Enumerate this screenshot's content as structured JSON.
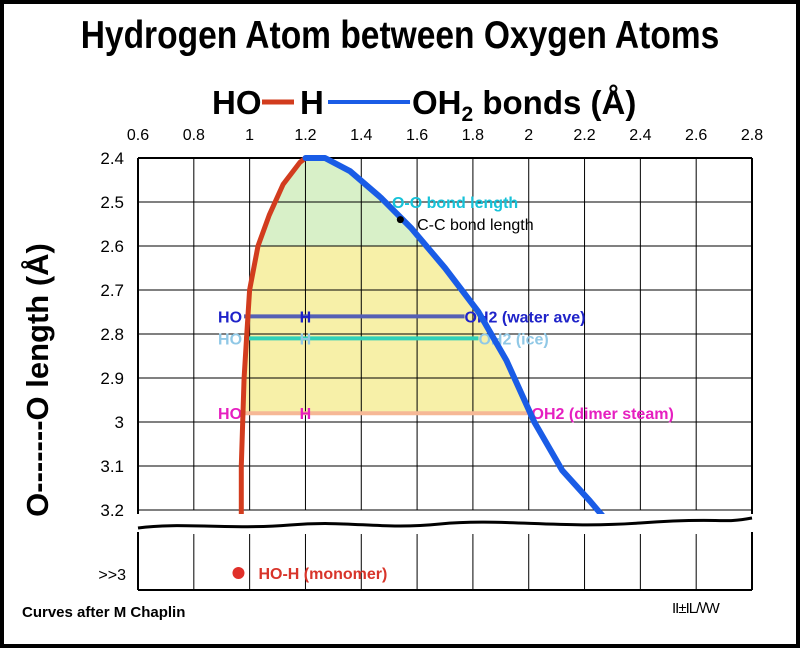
{
  "chart_data": {
    "type": "line",
    "title": "Hydrogen Atom between Oxygen Atoms",
    "subtitle_parts": {
      "left": "HO",
      "mid": "H",
      "right_main": "OH",
      "right_sub": "2",
      "right_tail": " bonds (Å)"
    },
    "ylabel": "O-------O  length (Å)",
    "xlim": [
      0.6,
      2.8
    ],
    "ylim": [
      2.4,
      3.2
    ],
    "x_ticks": [
      "0.6",
      "0.8",
      "1",
      "1.2",
      "1.4",
      "1.6",
      "1.8",
      "2",
      "2.2",
      "2.4",
      "2.6",
      "2.8"
    ],
    "y_ticks": [
      "2.4",
      "2.5",
      "2.6",
      "2.7",
      "2.8",
      "2.9",
      "3",
      "3.1",
      "3.2"
    ],
    "y_extra_tick": ">>3",
    "series": [
      {
        "key": "HO-H",
        "color": "#d23c1e",
        "points": [
          [
            0.97,
            3.22
          ],
          [
            0.97,
            3.1
          ],
          [
            0.975,
            3.0
          ],
          [
            0.98,
            2.9
          ],
          [
            0.99,
            2.8
          ],
          [
            1.0,
            2.7
          ],
          [
            1.03,
            2.6
          ],
          [
            1.07,
            2.53
          ],
          [
            1.12,
            2.46
          ],
          [
            1.18,
            2.41
          ],
          [
            1.2,
            2.4
          ]
        ]
      },
      {
        "key": "H—OH2",
        "color": "#1a5ce6",
        "points": [
          [
            1.2,
            2.4
          ],
          [
            1.27,
            2.4
          ],
          [
            1.36,
            2.43
          ],
          [
            1.47,
            2.49
          ],
          [
            1.58,
            2.56
          ],
          [
            1.7,
            2.65
          ],
          [
            1.82,
            2.75
          ],
          [
            1.92,
            2.86
          ],
          [
            2.02,
            3.0
          ],
          [
            2.12,
            3.11
          ],
          [
            2.22,
            3.18
          ],
          [
            2.28,
            3.225
          ]
        ]
      }
    ],
    "annotations": [
      {
        "text": "O-O bond length",
        "x": 1.51,
        "y": 2.5,
        "color": "#17c2d8"
      },
      {
        "text": "C-C bond length",
        "x": 1.6,
        "y": 2.55,
        "color": "#000000",
        "marker_x": 1.54,
        "marker_y": 2.54
      }
    ],
    "bond_levels": [
      {
        "y": 2.76,
        "x_start": 0.98,
        "x_mid": 1.2,
        "x_end": 1.77,
        "ho": "HO",
        "h": "H",
        "oh": "OH2",
        "note": "(water ave)",
        "color": "#5560b4",
        "text_color": "#1f23c9"
      },
      {
        "y": 2.81,
        "x_start": 0.98,
        "x_mid": 1.2,
        "x_end": 1.82,
        "ho": "HO",
        "h": "H",
        "oh": "OH2",
        "note": "(ice)",
        "color": "#30d0b8",
        "text_color": "#90c8e6"
      },
      {
        "y": 2.98,
        "x_start": 0.98,
        "x_mid": 1.2,
        "x_end": 2.01,
        "ho": "HO",
        "h": "H",
        "oh": "OH2",
        "note": "(dimer steam)",
        "color": "#f6b896",
        "text_color": "#e61fc0"
      }
    ],
    "monomer": {
      "text": "HO-H (monomer)",
      "x": 0.96,
      "color": "#d8342a",
      "dot_color": "#e0302a"
    },
    "fills": {
      "upper": "#d8f0c8",
      "lower": "#f7f0a8",
      "split_y": 2.6
    },
    "grid": true
  },
  "footer": {
    "credit": "Curves after M Chaplin",
    "signature": "II±IL/\\/W"
  }
}
